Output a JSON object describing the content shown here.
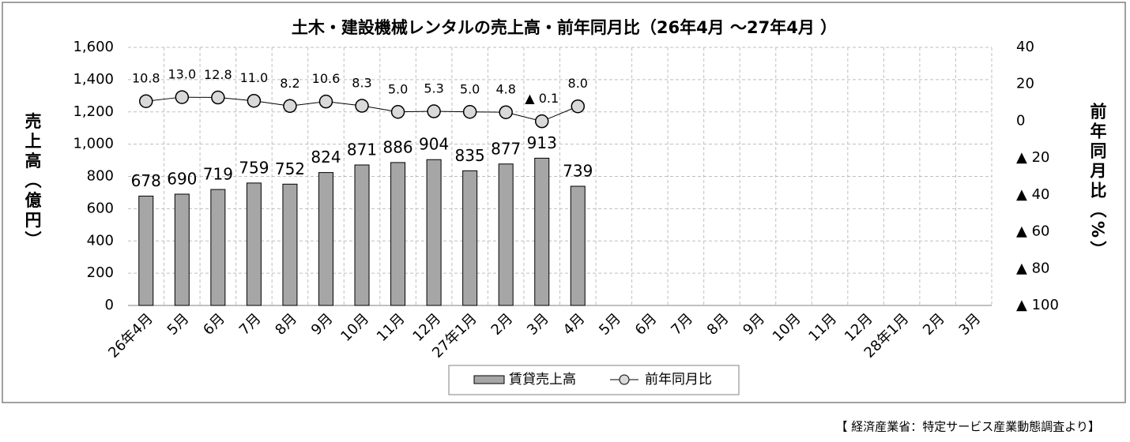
{
  "chart_data": {
    "type": "bar",
    "title": "土木・建設機械レンタルの売上高・前年同月比（26年4月 ～27年4月 ）",
    "y_label": "売上高（億円）",
    "y2_label": "前年同月比（%）",
    "source": "【 経済産業省：特定サービス産業動態調査より】",
    "categories": [
      "26年4月",
      "5月",
      "6月",
      "7月",
      "8月",
      "9月",
      "10月",
      "11月",
      "12月",
      "27年1月",
      "2月",
      "3月",
      "4月",
      "5月",
      "6月",
      "7月",
      "8月",
      "9月",
      "10月",
      "11月",
      "12月",
      "28年1月",
      "2月",
      "3月"
    ],
    "series": [
      {
        "name": "賃貸売上高",
        "type": "bar",
        "color": "#a6a6a6",
        "values": [
          678,
          690,
          719,
          759,
          752,
          824,
          871,
          886,
          904,
          835,
          877,
          913,
          739,
          null,
          null,
          null,
          null,
          null,
          null,
          null,
          null,
          null,
          null,
          null
        ]
      },
      {
        "name": "前年同月比",
        "type": "line",
        "axis": "y2",
        "color": "#d9d9d9",
        "values": [
          10.8,
          13.0,
          12.8,
          11.0,
          8.2,
          10.6,
          8.3,
          5.0,
          5.3,
          5.0,
          4.8,
          -0.1,
          8.0,
          null,
          null,
          null,
          null,
          null,
          null,
          null,
          null,
          null,
          null,
          null
        ],
        "value_labels": [
          "10.8",
          "13.0",
          "12.8",
          "11.0",
          "8.2",
          "10.6",
          "8.3",
          "5.0",
          "5.3",
          "5.0",
          "4.8",
          "▲ 0.1",
          "8.0",
          null,
          null,
          null,
          null,
          null,
          null,
          null,
          null,
          null,
          null,
          null
        ]
      }
    ],
    "ylim": [
      0,
      1600
    ],
    "yticks": [
      0,
      200,
      400,
      600,
      800,
      {
        "value": 1000,
        "label": "1,000"
      },
      {
        "value": 1200,
        "label": "1,200"
      },
      {
        "value": 1400,
        "label": "1,400"
      },
      {
        "value": 1600,
        "label": "1,600"
      }
    ],
    "y2lim": [
      -100,
      40
    ],
    "y2ticks": [
      {
        "value": -100,
        "label": "▲ 100"
      },
      {
        "value": -80,
        "label": "▲ 80"
      },
      {
        "value": -60,
        "label": "▲ 60"
      },
      {
        "value": -40,
        "label": "▲ 40"
      },
      {
        "value": -20,
        "label": "▲ 20"
      },
      0,
      20,
      40
    ],
    "grid": true
  }
}
